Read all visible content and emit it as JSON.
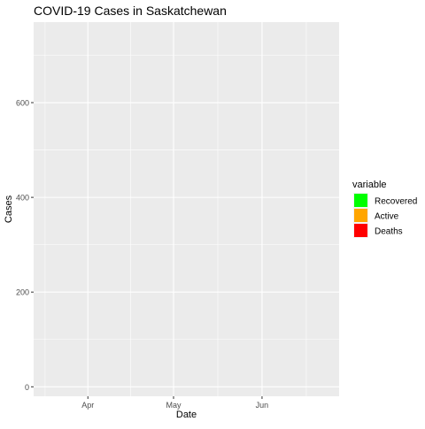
{
  "chart_data": {
    "type": "area",
    "title": "COVID-19 Cases in Saskatchewan",
    "xlabel": "Date",
    "ylabel": "Cases",
    "x_ticks": [
      {
        "label": "Apr",
        "date": "2020-04-01"
      },
      {
        "label": "May",
        "date": "2020-05-01"
      },
      {
        "label": "Jun",
        "date": "2020-06-01"
      }
    ],
    "xlim": [
      "2020-03-13",
      "2020-06-28"
    ],
    "y_ticks": [
      0,
      200,
      400,
      600
    ],
    "ylim": [
      -20,
      770
    ],
    "grid": true,
    "legend": {
      "title": "variable",
      "position": "right",
      "entries": [
        {
          "name": "Recovered",
          "color": "#00ff00"
        },
        {
          "name": "Active",
          "color": "#ffa500"
        },
        {
          "name": "Deaths",
          "color": "#ff0000"
        }
      ]
    },
    "series": [
      {
        "name": "Recovered",
        "values": []
      },
      {
        "name": "Active",
        "values": []
      },
      {
        "name": "Deaths",
        "values": []
      }
    ],
    "panel_background": "#ebebeb",
    "grid_color": "#ffffff"
  }
}
